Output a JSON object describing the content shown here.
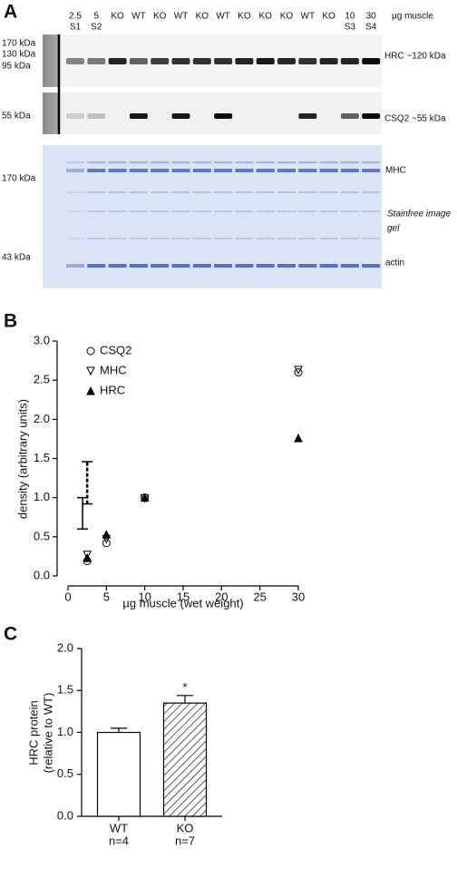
{
  "panel_a": {
    "label": "A",
    "unit": "µg muscle",
    "lanes": [
      [
        "2.5",
        "S1"
      ],
      [
        "5",
        "S2"
      ],
      [
        "KO"
      ],
      [
        "WT"
      ],
      [
        "KO"
      ],
      [
        "WT"
      ],
      [
        "KO"
      ],
      [
        "WT"
      ],
      [
        "KO"
      ],
      [
        "KO"
      ],
      [
        "KO"
      ],
      [
        "WT"
      ],
      [
        "KO"
      ],
      [
        "10",
        "S3"
      ],
      [
        "30",
        "S4"
      ]
    ],
    "markers": [
      "170 kDa",
      "130 kDa",
      "95 kDa",
      "55 kDa",
      "170 kDa",
      "43 kDa"
    ],
    "blot_labels": [
      "HRC ~120 kDa",
      "CSQ2 ~55 kDa",
      "MHC",
      "Stainfree image",
      "gel",
      "actin"
    ]
  },
  "chart_data": [
    {
      "type": "scatter",
      "label": "B",
      "xlabel": "µg muscle (wet weight)",
      "ylabel": "density (arbitrary units)",
      "xlim": [
        0,
        30
      ],
      "xticks": [
        0,
        5,
        10,
        15,
        20,
        25,
        30
      ],
      "ylim": [
        0,
        3
      ],
      "yticks": [
        {
          "value": 0,
          "label": "0.0"
        },
        {
          "value": 0.5,
          "label": "0.5"
        },
        {
          "value": 1,
          "label": "1.0"
        },
        {
          "value": 1.5,
          "label": "1.5"
        },
        {
          "value": 2,
          "label": "2.0"
        },
        {
          "value": 2.5,
          "label": "2.5"
        },
        {
          "value": 3,
          "label": "3.0"
        }
      ],
      "legend": "top-left",
      "series": [
        {
          "name": "CSQ2",
          "marker": "circle-open",
          "color": "#000000",
          "x": [
            2.5,
            5,
            10,
            30
          ],
          "values": [
            0.19,
            0.42,
            1.0,
            2.6
          ]
        },
        {
          "name": "MHC",
          "marker": "triangle-down-open",
          "color": "#000000",
          "x": [
            2.5,
            5,
            10,
            30
          ],
          "values": [
            0.27,
            0.47,
            0.99,
            2.63
          ]
        },
        {
          "name": "HRC",
          "marker": "triangle-up-filled",
          "color": "#000000",
          "x": [
            2.5,
            5,
            10,
            30
          ],
          "values": [
            0.23,
            0.53,
            1.0,
            1.76
          ]
        }
      ],
      "error_bars": [
        {
          "x": 1.9,
          "low": 0.6,
          "high": 1.0,
          "style": "solid"
        },
        {
          "x": 2.5,
          "low": 0.92,
          "high": 1.46,
          "style": "dashed"
        }
      ]
    },
    {
      "type": "bar",
      "label": "C",
      "ylabel": [
        "HRC protein",
        "(relative to WT)"
      ],
      "categories": [
        "WT",
        "KO"
      ],
      "category_notes": [
        "n=4",
        "n=7"
      ],
      "values": [
        1.0,
        1.35
      ],
      "errors": [
        0.05,
        0.09
      ],
      "fills": [
        "white",
        "hatched"
      ],
      "annotations": [
        null,
        "*"
      ],
      "ylim": [
        0,
        2
      ],
      "yticks": [
        {
          "value": 0,
          "label": "0.0"
        },
        {
          "value": 0.5,
          "label": "0.5"
        },
        {
          "value": 1,
          "label": "1.0"
        },
        {
          "value": 1.5,
          "label": "1.5"
        },
        {
          "value": 2,
          "label": "2.0"
        }
      ]
    }
  ]
}
